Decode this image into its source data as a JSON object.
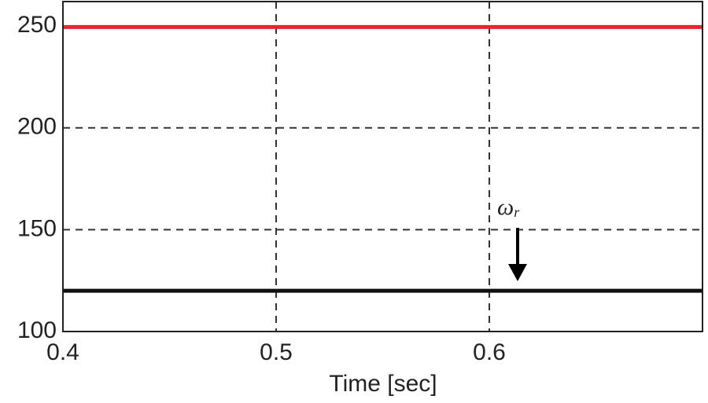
{
  "chart_data": {
    "type": "line",
    "x_label": "Time [sec]",
    "x": [
      0.4,
      0.45,
      0.5,
      0.55,
      0.6,
      0.65,
      0.7
    ],
    "series": [
      {
        "color": "#e8262a",
        "values": [
          249.5,
          249.5,
          249.5,
          249.5,
          249.5,
          249.5,
          249.5
        ]
      },
      {
        "color": "#111111",
        "values": [
          120,
          120,
          120,
          120,
          120,
          120,
          120
        ]
      }
    ],
    "xlim": [
      0.4,
      0.7
    ],
    "xticks": [
      0.4,
      0.5,
      0.6
    ],
    "ylim": [
      100,
      262
    ],
    "yticks": [
      100,
      150,
      200,
      250
    ],
    "grid": true,
    "annotation": {
      "symbol": "ω",
      "subscript": "r"
    }
  }
}
